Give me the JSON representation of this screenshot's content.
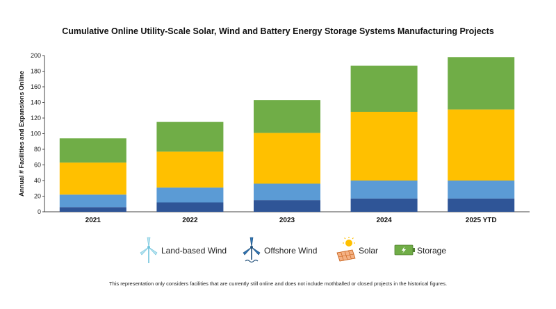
{
  "chart_data": {
    "type": "bar",
    "stacked": true,
    "title": "Cumulative Online Utility-Scale Solar, Wind and Battery Energy Storage Systems Manufacturing Projects",
    "xlabel": "",
    "ylabel": "Annual # Facilities and Expansions Online",
    "ylim": [
      0,
      200
    ],
    "yticks": [
      0,
      20,
      40,
      60,
      80,
      100,
      120,
      140,
      160,
      180,
      200
    ],
    "grid": false,
    "categories": [
      "2021",
      "2022",
      "2023",
      "2024",
      "2025 YTD"
    ],
    "series": [
      {
        "name": "Offshore Wind",
        "color": "#2f5597",
        "values": [
          6,
          12,
          15,
          17,
          17
        ]
      },
      {
        "name": "Land-based Wind",
        "color": "#5b9bd5",
        "values": [
          16,
          19,
          21,
          23,
          23
        ]
      },
      {
        "name": "Solar",
        "color": "#ffc000",
        "values": [
          41,
          46,
          65,
          88,
          91
        ]
      },
      {
        "name": "Storage",
        "color": "#70ad47",
        "values": [
          31,
          38,
          42,
          59,
          67
        ]
      }
    ],
    "legend": [
      {
        "label": "Land-based Wind",
        "icon": "land-based-wind-icon"
      },
      {
        "label": "Offshore Wind",
        "icon": "offshore-wind-icon"
      },
      {
        "label": "Solar",
        "icon": "solar-icon"
      },
      {
        "label": "Storage",
        "icon": "storage-icon"
      }
    ],
    "legend_position": "bottom-center"
  },
  "footnote": "This representation only considers facilities that are currently still online and does not include mothballed or closed projects in the historical figures."
}
